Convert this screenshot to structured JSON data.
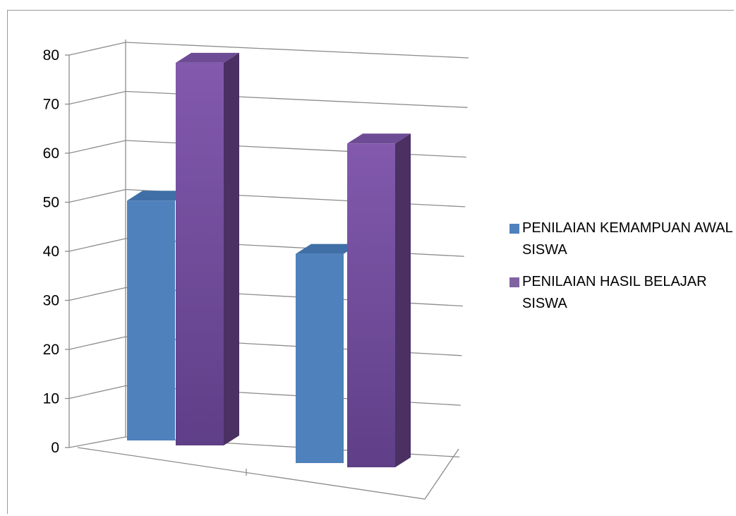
{
  "chart_data": {
    "type": "bar",
    "style": "3d-clustered-column",
    "categories": [
      "",
      ""
    ],
    "series": [
      {
        "name": "PENILAIAN KEMAMPUAN AWAL SISWA",
        "values": [
          47,
          41
        ],
        "color": "#4f81bd"
      },
      {
        "name": "PENILAIAN HASIL BELAJAR SISWA",
        "values": [
          78,
          66
        ],
        "color": "#8064a2"
      }
    ],
    "ylim": [
      0,
      80
    ],
    "yticks": [
      0,
      10,
      20,
      30,
      40,
      50,
      60,
      70,
      80
    ],
    "grid": true,
    "legend_position": "right",
    "xlabel": "",
    "ylabel": "",
    "title": ""
  }
}
